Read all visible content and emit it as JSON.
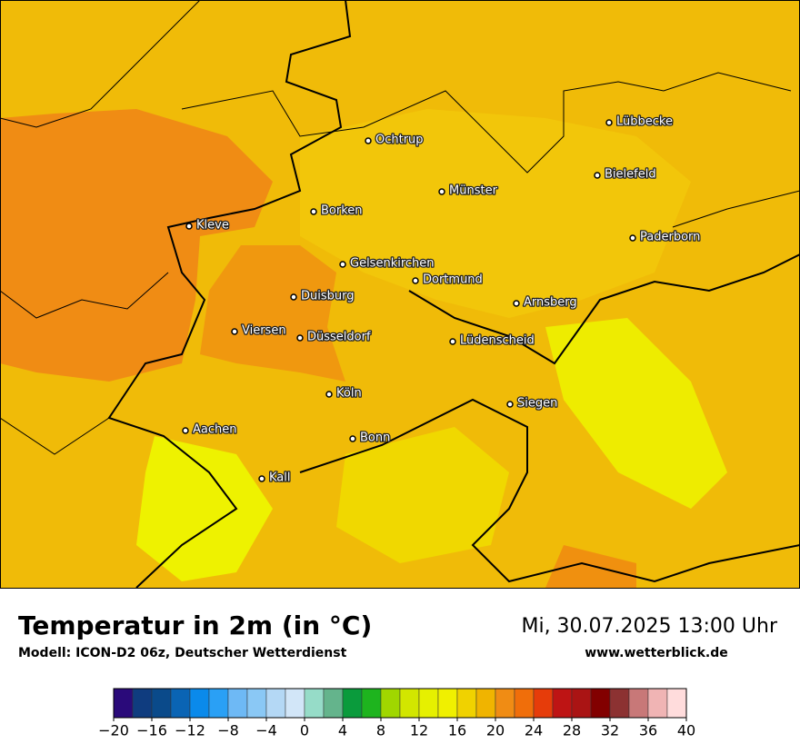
{
  "header": {
    "title": "Temperatur in 2m (in °C)",
    "model": "Modell: ICON-D2 06z, Deutscher Wetterdienst",
    "datetime": "Mi, 30.07.2025 13:00 Uhr",
    "website": "www.wetterblick.de"
  },
  "cities": [
    {
      "name": "Lübbecke"
    },
    {
      "name": "Ochtrup"
    },
    {
      "name": "Bielefeld"
    },
    {
      "name": "Münster"
    },
    {
      "name": "Borken"
    },
    {
      "name": "Kleve"
    },
    {
      "name": "Paderborn"
    },
    {
      "name": "Gelsenkirchen"
    },
    {
      "name": "Dortmund"
    },
    {
      "name": "Duisburg"
    },
    {
      "name": "Arnsberg"
    },
    {
      "name": "Viersen"
    },
    {
      "name": "Düsseldorf"
    },
    {
      "name": "Lüdenscheid"
    },
    {
      "name": "Köln"
    },
    {
      "name": "Siegen"
    },
    {
      "name": "Aachen"
    },
    {
      "name": "Bonn"
    },
    {
      "name": "Kall"
    }
  ],
  "colorbar": {
    "range": [
      -20,
      40
    ],
    "colors": [
      "#2a0a7a",
      "#0f3c7f",
      "#0a4a8a",
      "#0a64b4",
      "#0a8aeb",
      "#2aa0f5",
      "#6eb9f5",
      "#8ac8f5",
      "#b4d8f5",
      "#d2e6f8",
      "#96dcc8",
      "#64b48c",
      "#0a9b3c",
      "#1eb41e",
      "#a0d700",
      "#d2e600",
      "#e6f000",
      "#f0f000",
      "#f0d200",
      "#f0b400",
      "#f08c14",
      "#f06e0a",
      "#e63c0a",
      "#be1414",
      "#aa1414",
      "#820000",
      "#8c3232",
      "#c87878",
      "#f0b4b4",
      "#ffdcdc"
    ],
    "ticks": [
      {
        "value": -20,
        "label": "−20"
      },
      {
        "value": -16,
        "label": "−16"
      },
      {
        "value": -12,
        "label": "−12"
      },
      {
        "value": -8,
        "label": "−8"
      },
      {
        "value": -4,
        "label": "−4"
      },
      0,
      4,
      8,
      12,
      16,
      20,
      24,
      28,
      32,
      36,
      40
    ]
  }
}
